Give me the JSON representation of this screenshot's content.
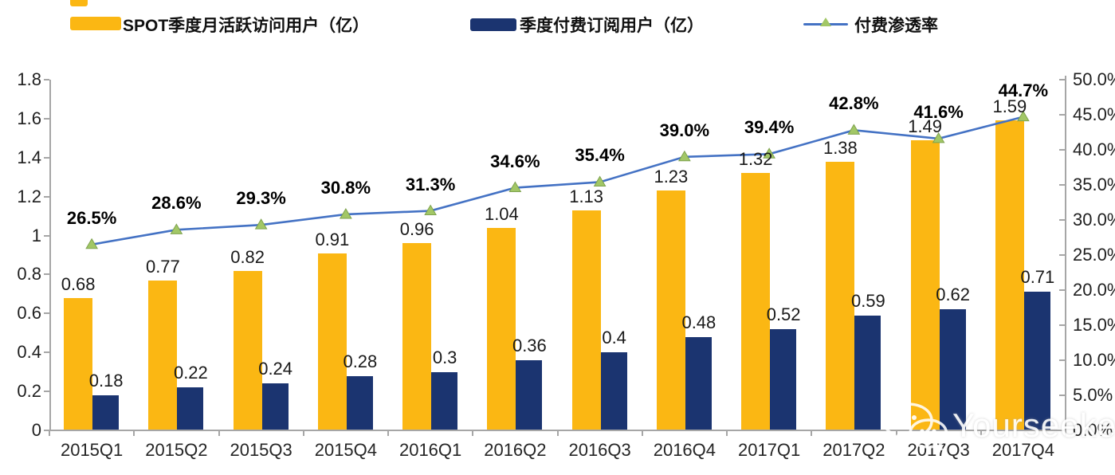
{
  "legend": {
    "mau_label": "SPOT季度月活跃访问用户（亿）",
    "subs_label": "季度付费订阅用户（亿）",
    "penetration_label": "付费渗透率"
  },
  "colors": {
    "mau_bar": "#FBB713",
    "subs_bar": "#1B3470",
    "penetration_line": "#4472C4",
    "marker_fill": "#A2C766",
    "marker_stroke": "#7EA24E",
    "axis": "#A6A6A6"
  },
  "chart_data": {
    "type": "bar",
    "subtype": "grouped bars with secondary-axis line",
    "categories": [
      "2015Q1",
      "2015Q2",
      "2015Q3",
      "2015Q4",
      "2016Q1",
      "2016Q2",
      "2016Q3",
      "2016Q4",
      "2017Q1",
      "2017Q2",
      "2017Q3",
      "2017Q4"
    ],
    "series": [
      {
        "name": "SPOT季度月活跃访问用户（亿）",
        "type": "bar",
        "axis": "left",
        "values": [
          0.68,
          0.77,
          0.82,
          0.91,
          0.96,
          1.04,
          1.13,
          1.23,
          1.32,
          1.38,
          1.49,
          1.59
        ],
        "labels": [
          "0.68",
          "0.77",
          "0.82",
          "0.91",
          "0.96",
          "1.04",
          "1.13",
          "1.23",
          "1.32",
          "1.38",
          "1.49",
          "1.59"
        ]
      },
      {
        "name": "季度付费订阅用户（亿）",
        "type": "bar",
        "axis": "left",
        "values": [
          0.18,
          0.22,
          0.24,
          0.28,
          0.3,
          0.36,
          0.4,
          0.48,
          0.52,
          0.59,
          0.62,
          0.71
        ],
        "labels": [
          "0.18",
          "0.22",
          "0.24",
          "0.28",
          "0.3",
          "0.36",
          "0.4",
          "0.48",
          "0.52",
          "0.59",
          "0.62",
          "0.71"
        ]
      },
      {
        "name": "付费渗透率",
        "type": "line",
        "axis": "right",
        "values": [
          26.5,
          28.6,
          29.3,
          30.8,
          31.3,
          34.6,
          35.4,
          39.0,
          39.4,
          42.8,
          41.6,
          44.7
        ],
        "labels": [
          "26.5%",
          "28.6%",
          "29.3%",
          "30.8%",
          "31.3%",
          "34.6%",
          "35.4%",
          "39.0%",
          "39.4%",
          "42.8%",
          "41.6%",
          "44.7%"
        ]
      }
    ],
    "left_axis": {
      "min": 0,
      "max": 1.8,
      "step": 0.2,
      "tick_labels": [
        "0",
        "0.2",
        "0.4",
        "0.6",
        "0.8",
        "1",
        "1.2",
        "1.4",
        "1.6",
        "1.8"
      ]
    },
    "right_axis": {
      "min": 0,
      "max": 50,
      "step": 5,
      "tick_labels": [
        "0.0%",
        "5.0%",
        "10.0%",
        "15.0%",
        "20.0%",
        "25.0%",
        "30.0%",
        "35.0%",
        "40.0%",
        "45.0%",
        "50.0%"
      ]
    },
    "grid": false,
    "legend_position": "top",
    "title": ""
  },
  "watermark": {
    "text": "Yourseeker",
    "icon": "wechat-icon"
  }
}
